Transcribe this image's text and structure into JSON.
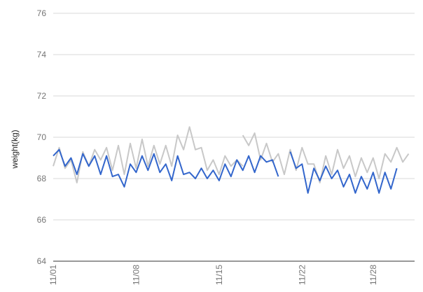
{
  "chart_data": {
    "type": "line",
    "title": "",
    "xlabel": "",
    "ylabel": "weight(kg)",
    "ylim": [
      64,
      76
    ],
    "yticks": [
      "64",
      "66",
      "68",
      "70",
      "72",
      "74",
      "76"
    ],
    "xlim": [
      0,
      61
    ],
    "xticks": [
      {
        "label": "11/01",
        "x": 0
      },
      {
        "label": "11/08",
        "x": 14
      },
      {
        "label": "11/15",
        "x": 28
      },
      {
        "label": "11/22",
        "x": 42
      },
      {
        "label": "11/28",
        "x": 54
      }
    ],
    "grid": true,
    "legend": "none",
    "series": [
      {
        "color": "#c8c8c8",
        "segments": [
          {
            "start": 0,
            "values": [
              68.6,
              69.5,
              68.5,
              68.9,
              67.8,
              69.3,
              68.6,
              69.4,
              68.9,
              69.5,
              68.4,
              69.6,
              68.2,
              69.7,
              68.5,
              69.9,
              68.6,
              69.6,
              68.7,
              69.6,
              68.6,
              70.1,
              69.4,
              70.5,
              69.4,
              69.5,
              68.4,
              68.9,
              68.2,
              69.1,
              68.6,
              68.9,
              68.6
            ]
          },
          {
            "start": 32,
            "values": [
              70.1,
              69.6,
              70.2,
              68.9,
              69.7,
              68.8,
              69.2,
              68.2,
              69.4,
              68.4,
              69.5,
              68.7,
              68.7,
              67.8,
              69.1,
              68.2,
              69.4,
              68.5,
              69.1,
              68.1,
              69.0,
              68.3,
              69.0,
              68.0,
              69.2,
              68.8,
              69.5,
              68.8,
              69.2
            ]
          }
        ]
      },
      {
        "color": "#3366cc",
        "segments": [
          {
            "start": 0,
            "values": [
              69.1,
              69.4,
              68.6,
              69.0,
              68.2,
              69.2,
              68.6,
              69.1,
              68.2,
              69.1,
              68.1,
              68.2,
              67.6,
              68.7,
              68.3,
              69.1,
              68.4,
              69.2,
              68.3,
              68.7,
              67.9,
              69.1,
              68.2,
              68.3,
              68.0,
              68.5,
              68.0,
              68.4,
              67.9,
              68.7,
              68.1,
              68.9,
              68.4,
              69.1,
              68.3,
              69.1,
              68.8,
              68.9,
              68.1
            ]
          },
          {
            "start": 40,
            "values": [
              69.3,
              68.5,
              68.7,
              67.3,
              68.5,
              67.9,
              68.6,
              68.0,
              68.4,
              67.6,
              68.2,
              67.3,
              68.1,
              67.5,
              68.3,
              67.3,
              68.3,
              67.5,
              68.5
            ]
          }
        ]
      }
    ]
  }
}
